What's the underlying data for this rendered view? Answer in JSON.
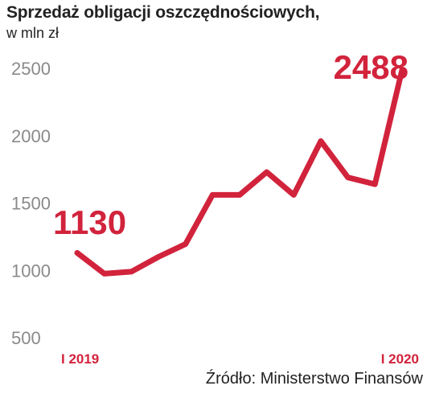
{
  "header": {
    "title": "Sprzedaż obligacji oszczędnościowych,",
    "subtitle": "w mln zł"
  },
  "footer": {
    "source": "Źródło: Ministerstwo Finansów"
  },
  "colors": {
    "series": "#d2233c",
    "axis_text": "#8a8a8a",
    "text": "#222222"
  },
  "chart_data": {
    "type": "line",
    "title": "Sprzedaż obligacji oszczędnościowych,",
    "subtitle": "w mln zł",
    "xlabel": "",
    "ylabel": "",
    "ylim": [
      500,
      2500
    ],
    "yticks": [
      500,
      1000,
      1500,
      2000,
      2500
    ],
    "xtick_labels": [
      {
        "index": 0,
        "label": "I 2019"
      },
      {
        "index": 12,
        "label": "I 2020"
      }
    ],
    "grid": false,
    "legend": "none",
    "series": [
      {
        "values": [
          1130,
          975,
          990,
          1100,
          1195,
          1560,
          1560,
          1730,
          1560,
          1960,
          1690,
          1640,
          2488
        ],
        "color": "#d2233c"
      }
    ],
    "data_labels": [
      {
        "index": 0,
        "text": "1130"
      },
      {
        "index": 12,
        "text": "2488"
      }
    ]
  }
}
